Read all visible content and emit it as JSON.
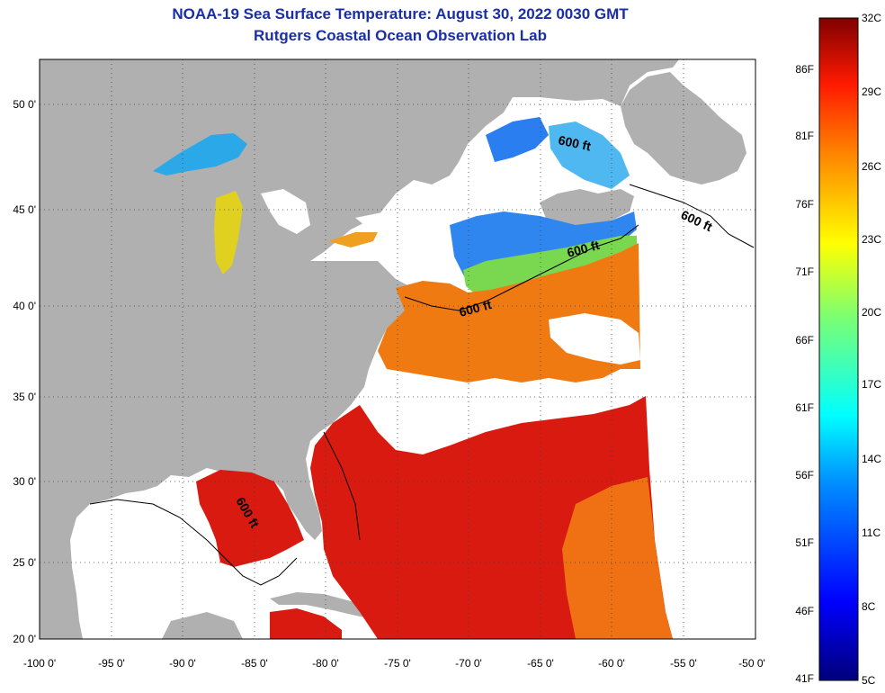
{
  "title": "NOAA-19 Sea Surface Temperature:  August 30, 2022 0030 GMT",
  "subtitle": "Rutgers Coastal Ocean Observation Lab",
  "lat_ticks": [
    "50 0'",
    "45 0'",
    "40 0'",
    "35 0'",
    "30 0'",
    "25 0'",
    "20 0'"
  ],
  "lon_ticks": [
    "-100 0'",
    "-95 0'",
    "-90 0'",
    "-85 0'",
    "-80 0'",
    "-75 0'",
    "-70 0'",
    "-65 0'",
    "-60 0'",
    "-55 0'",
    "-50 0'"
  ],
  "contour_label": "600 ft",
  "colorbar": {
    "celsius": [
      "32C",
      "29C",
      "26C",
      "23C",
      "20C",
      "17C",
      "14C",
      "11C",
      "8C",
      "5C"
    ],
    "fahrenheit": [
      "86F",
      "81F",
      "76F",
      "71F",
      "66F",
      "61F",
      "56F",
      "51F",
      "46F",
      "41F"
    ]
  },
  "colors": {
    "land": "#b0b0b0",
    "no_data": "#ffffff",
    "title": "#1a2ea8",
    "warm": "#d81a10",
    "cool": "#2a7ef0"
  }
}
